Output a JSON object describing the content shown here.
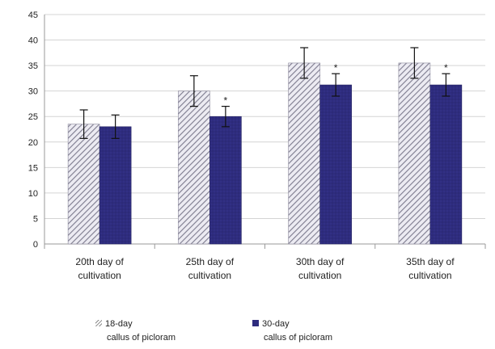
{
  "chart_data": {
    "type": "bar",
    "categories": [
      [
        "20th day of",
        "cultivation"
      ],
      [
        "25th day of",
        "cultivation"
      ],
      [
        "30th day of",
        "cultivation"
      ],
      [
        "35th day of",
        "cultivation"
      ]
    ],
    "series": [
      {
        "name": [
          "18-day",
          "callus of  picloram"
        ],
        "values": [
          23.5,
          30,
          35.5,
          35.5
        ],
        "errors": [
          2.8,
          3.0,
          3.0,
          3.0
        ],
        "pattern": "diagonal-hatch",
        "color": "#9a98aa",
        "markers": [
          "",
          "",
          "",
          ""
        ]
      },
      {
        "name": [
          "30-day",
          "callus of  picloram"
        ],
        "values": [
          23,
          25,
          31.2,
          31.2
        ],
        "errors": [
          2.3,
          2.0,
          2.2,
          2.2
        ],
        "pattern": "solid",
        "color": "#2e2c7e",
        "markers": [
          "",
          "*",
          "*",
          "*"
        ]
      }
    ],
    "ylim": [
      0,
      45
    ],
    "yticks": [
      0,
      5,
      10,
      15,
      20,
      25,
      30,
      35,
      40,
      45
    ],
    "grid": true,
    "legend": "bottom",
    "title": "",
    "xlabel": "",
    "ylabel": ""
  }
}
